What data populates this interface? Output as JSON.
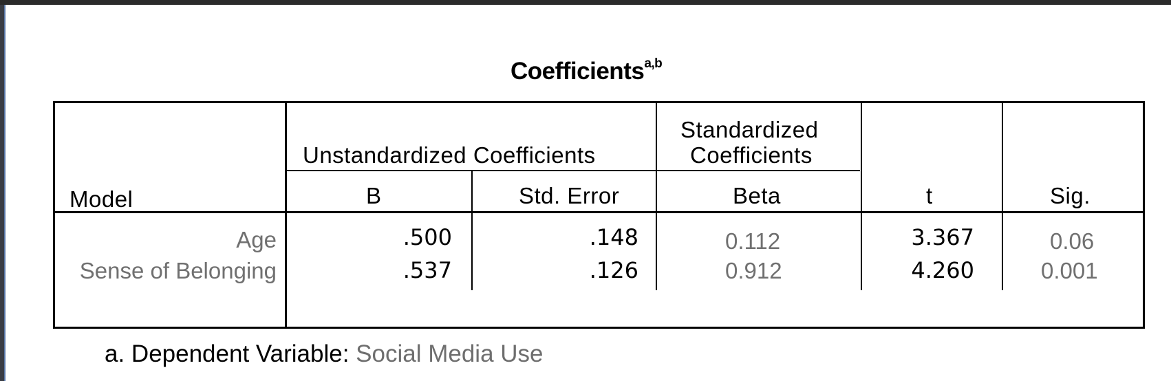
{
  "title": {
    "text": "Coefficients",
    "superscript": "a,b"
  },
  "header": {
    "model": "Model",
    "unstandardized_group": "Unstandardized Coefficients",
    "standardized_group_line1": "Standardized",
    "standardized_group_line2": "Coefficients",
    "b": "B",
    "std_error": "Std. Error",
    "beta": "Beta",
    "t": "t",
    "sig": "Sig."
  },
  "rows": [
    {
      "model": "Age",
      "b": ".500",
      "std_error": ".148",
      "beta": "0.112",
      "t": "3.367",
      "sig": "0.06"
    },
    {
      "model": "Sense of Belonging",
      "b": ".537",
      "std_error": ".126",
      "beta": "0.912",
      "t": "4.260",
      "sig": "0.001"
    }
  ],
  "footnote": {
    "prefix": "a. Dependent Variable: ",
    "variable": "Social Media Use"
  }
}
